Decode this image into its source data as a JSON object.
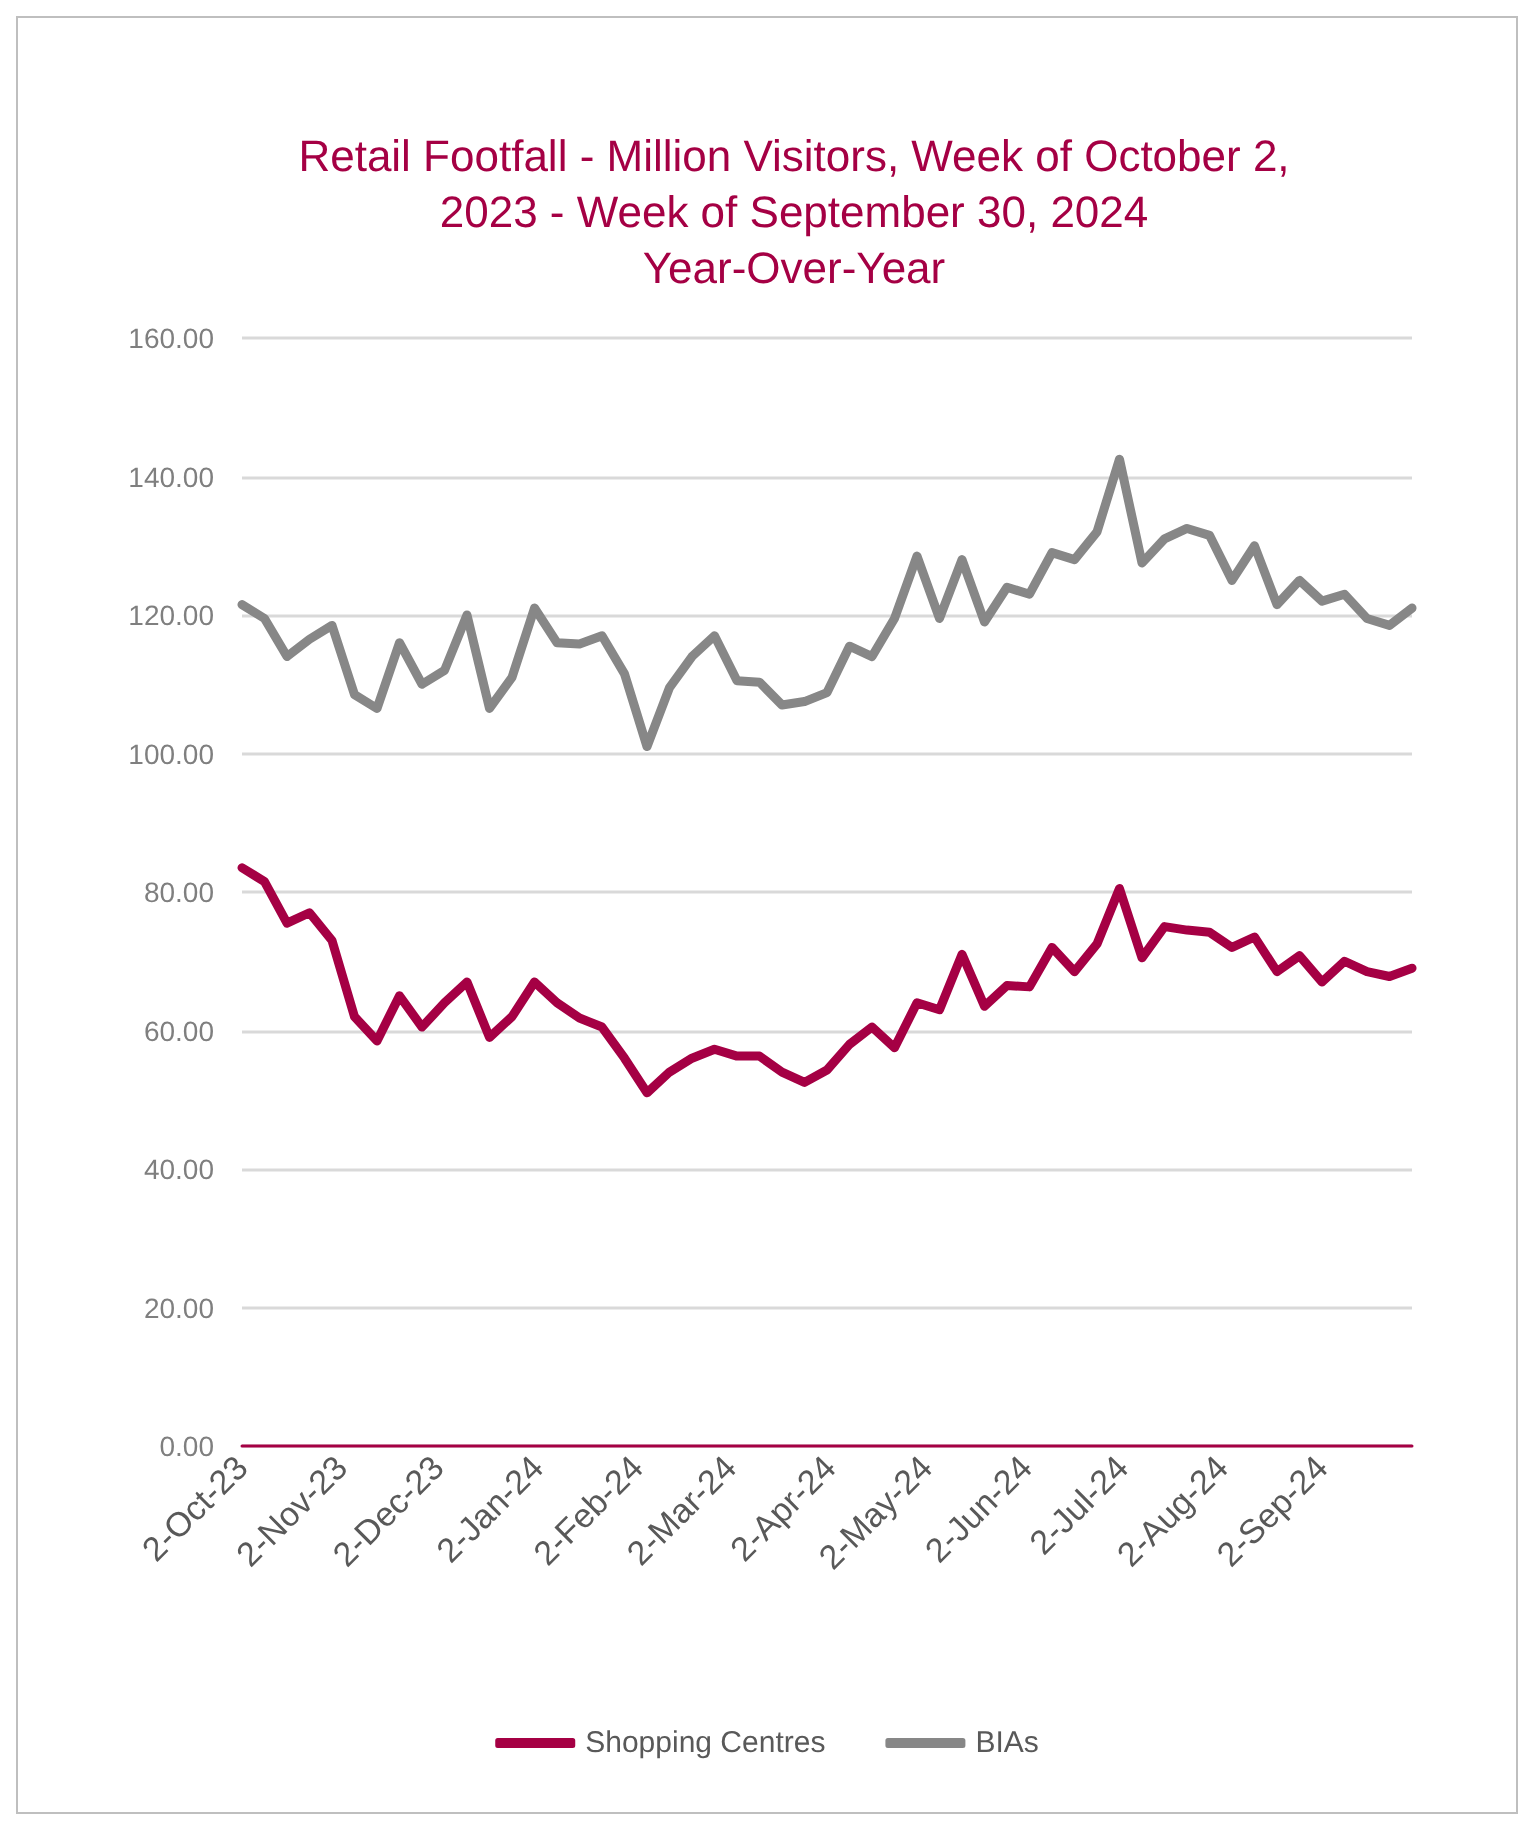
{
  "chart_data": {
    "type": "line",
    "title": "Retail Footfall - Million Visitors, Week of October 2, 2023 - Week of September 30, 2024 Year-Over-Year",
    "x": [
      "2023-10-02",
      "2023-10-09",
      "2023-10-16",
      "2023-10-23",
      "2023-10-30",
      "2023-11-06",
      "2023-11-13",
      "2023-11-20",
      "2023-11-27",
      "2023-12-04",
      "2023-12-11",
      "2023-12-18",
      "2023-12-25",
      "2024-01-01",
      "2024-01-08",
      "2024-01-15",
      "2024-01-22",
      "2024-01-29",
      "2024-02-05",
      "2024-02-12",
      "2024-02-19",
      "2024-02-26",
      "2024-03-04",
      "2024-03-11",
      "2024-03-18",
      "2024-03-25",
      "2024-04-01",
      "2024-04-08",
      "2024-04-15",
      "2024-04-22",
      "2024-04-29",
      "2024-05-06",
      "2024-05-13",
      "2024-05-20",
      "2024-05-27",
      "2024-06-03",
      "2024-06-10",
      "2024-06-17",
      "2024-06-24",
      "2024-07-01",
      "2024-07-08",
      "2024-07-15",
      "2024-07-22",
      "2024-07-29",
      "2024-08-05",
      "2024-08-12",
      "2024-08-19",
      "2024-08-26",
      "2024-09-02",
      "2024-09-09",
      "2024-09-16",
      "2024-09-23",
      "2024-09-30"
    ],
    "series": [
      {
        "name": "Shopping Centres",
        "color": "#a50044",
        "values": [
          83.5,
          81.5,
          75.5,
          77,
          73,
          62,
          58.5,
          65,
          60.5,
          64,
          67,
          59,
          62,
          67,
          64,
          61.8,
          60.5,
          56,
          51,
          54,
          56,
          57.3,
          56.3,
          56.3,
          54,
          52.5,
          54.3,
          58,
          60.5,
          57.5,
          64,
          63,
          71,
          63.5,
          66.5,
          66.3,
          72,
          68.5,
          72.5,
          80.5,
          70.5,
          75,
          74.5,
          74.2,
          72,
          73.5,
          68.5,
          70.8,
          67,
          70,
          68.5,
          67.8,
          69
        ]
      },
      {
        "name": "BIAs",
        "color": "#878787",
        "values": [
          121.5,
          119.5,
          114,
          116.5,
          118.5,
          108.5,
          106.5,
          116,
          110,
          112,
          120,
          106.5,
          111,
          121,
          116,
          115.8,
          117,
          111.5,
          101,
          109.5,
          114,
          117,
          110.5,
          110.3,
          107,
          107.5,
          108.8,
          115.5,
          114,
          119.5,
          128.5,
          119.5,
          128,
          119,
          124,
          123,
          129,
          128,
          132,
          142.5,
          127.5,
          131,
          132.5,
          131.5,
          125,
          130,
          121.5,
          125,
          122,
          123,
          119.5,
          118.5,
          121
        ]
      }
    ],
    "xlim": [
      "2023-10-02",
      "2024-09-30"
    ],
    "xticks": [
      {
        "value": "2023-10-02",
        "label": "2-Oct-23"
      },
      {
        "value": "2023-11-02",
        "label": "2-Nov-23"
      },
      {
        "value": "2023-12-02",
        "label": "2-Dec-23"
      },
      {
        "value": "2024-01-02",
        "label": "2-Jan-24"
      },
      {
        "value": "2024-02-02",
        "label": "2-Feb-24"
      },
      {
        "value": "2024-03-02",
        "label": "2-Mar-24"
      },
      {
        "value": "2024-04-02",
        "label": "2-Apr-24"
      },
      {
        "value": "2024-05-02",
        "label": "2-May-24"
      },
      {
        "value": "2024-06-02",
        "label": "2-Jun-24"
      },
      {
        "value": "2024-07-02",
        "label": "2-Jul-24"
      },
      {
        "value": "2024-08-02",
        "label": "2-Aug-24"
      },
      {
        "value": "2024-09-02",
        "label": "2-Sep-24"
      }
    ],
    "ylim": [
      0,
      160
    ],
    "yticks": [
      {
        "value": 0,
        "label": "0.00"
      },
      {
        "value": 20,
        "label": "20.00"
      },
      {
        "value": 40,
        "label": "40.00"
      },
      {
        "value": 60,
        "label": "60.00"
      },
      {
        "value": 80,
        "label": "80.00"
      },
      {
        "value": 100,
        "label": "100.00"
      },
      {
        "value": 120,
        "label": "120.00"
      },
      {
        "value": 140,
        "label": "140.00"
      },
      {
        "value": 160,
        "label": "160.00"
      }
    ],
    "grid": "y",
    "legend": "bottom",
    "marker": "none",
    "line_style": "solid"
  }
}
